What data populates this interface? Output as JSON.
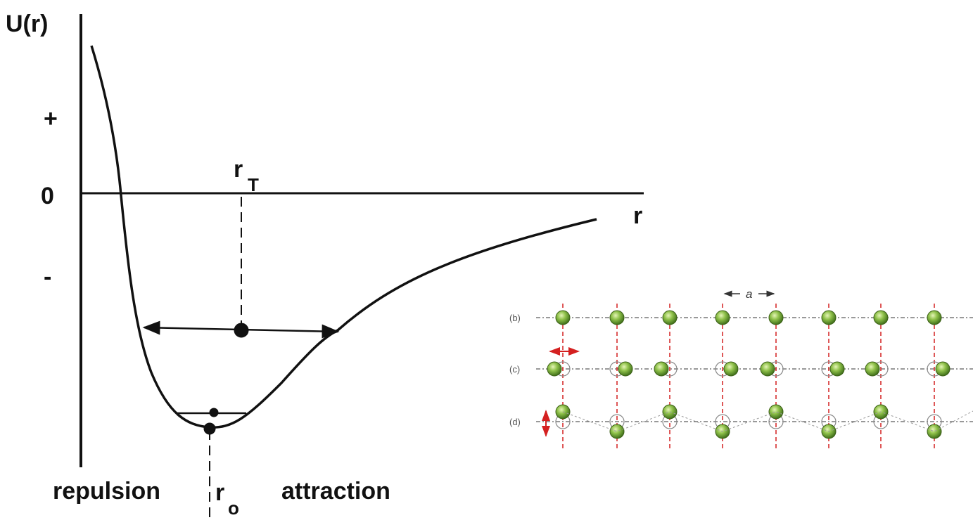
{
  "potential_plot": {
    "y_axis_label": "U(r)",
    "y_marks": [
      "+",
      "0",
      "-"
    ],
    "x_axis_label": "r",
    "r_T": {
      "base": "r",
      "sub": "T"
    },
    "r_o": {
      "base": "r",
      "sub": "o"
    },
    "regions": [
      "repulsion",
      "attraction"
    ]
  },
  "lattice": {
    "rows": [
      "(b)",
      "(c)",
      "(d)"
    ],
    "spacing_label": "a"
  }
}
